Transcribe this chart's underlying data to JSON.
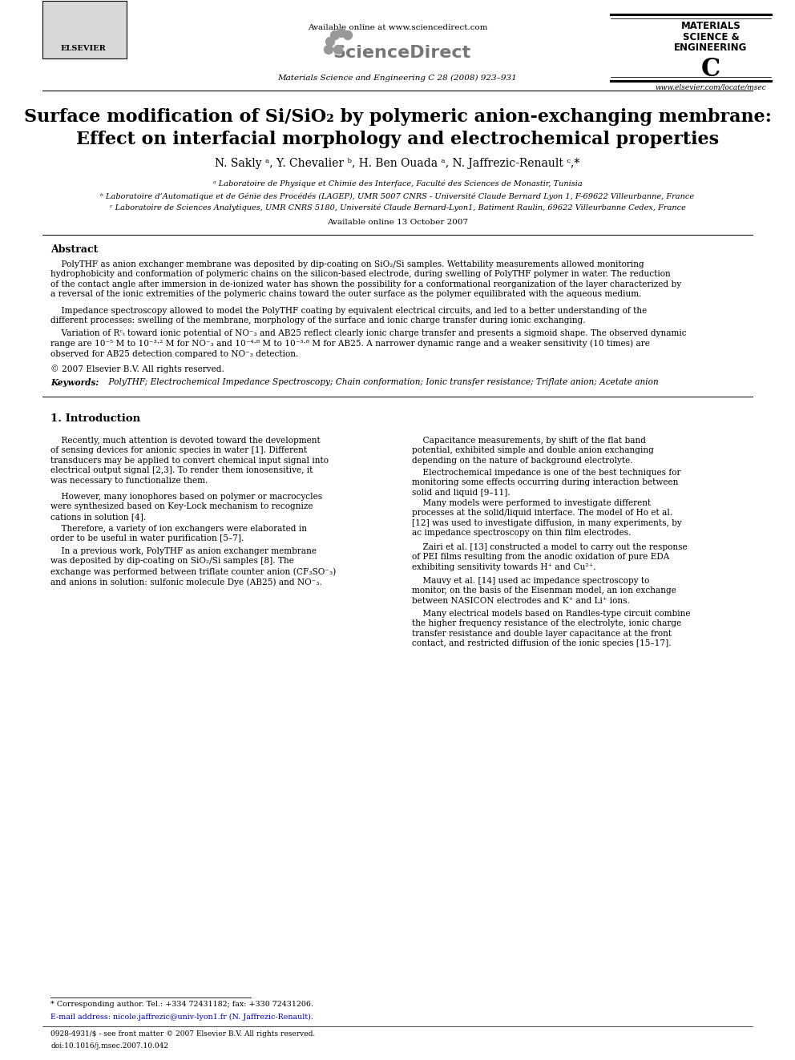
{
  "page_width": 9.92,
  "page_height": 13.23,
  "bg_color": "#ffffff",
  "header_available_online": "Available online at www.sciencedirect.com",
  "header_sciencedirect": "ScienceDirect",
  "header_journal_line": "Materials Science and Engineering C 28 (2008) 923–931",
  "header_mse_line1": "MATERIALS",
  "header_mse_line2": "SCIENCE &",
  "header_mse_line3": "ENGINEERING",
  "header_mse_line4": "C",
  "header_website": "www.elsevier.com/locate/msec",
  "header_elsevier": "ELSEVIER",
  "title_line1": "Surface modification of Si/SiO₂ by polymeric anion-exchanging membrane:",
  "title_line2": "Effect on interfacial morphology and electrochemical properties",
  "authors": "N. Sakly ᵃ, Y. Chevalier ᵇ, H. Ben Ouada ᵃ, N. Jaffrezic-Renault ᶜ,*",
  "affil_a": "ᵃ Laboratoire de Physique et Chimie des Interface, Faculté des Sciences de Monastir, Tunisia",
  "affil_b": "ᵇ Laboratoire d’Automatique et de Génie des Procédés (LAGEP), UMR 5007 CNRS - Université Claude Bernard Lyon 1, F-69622 Villeurbanne, France",
  "affil_c": "ᶜ Laboratoire de Sciences Analytiques, UMR CNRS 5180, Université Claude Bernard-Lyon1, Batiment Raulin, 69622 Villeurbanne Cedex, France",
  "available_online_date": "Available online 13 October 2007",
  "abstract_title": "Abstract",
  "abstract_p1": "    PolyTHF as anion exchanger membrane was deposited by dip-coating on SiO₂/Si samples. Wettability measurements allowed monitoring\nhydrophobicity and conformation of polymeric chains on the silicon-based electrode, during swelling of PolyTHF polymer in water. The reduction\nof the contact angle after immersion in de-ionized water has shown the possibility for a conformational reorganization of the layer characterized by\na reversal of the ionic extremities of the polymeric chains toward the outer surface as the polymer equilibrated with the aqueous medium.",
  "abstract_p2": "    Impedance spectroscopy allowed to model the PolyTHF coating by equivalent electrical circuits, and led to a better understanding of the\ndifferent processes: swelling of the membrane, morphology of the surface and ionic charge transfer during ionic exchanging.",
  "abstract_p3": "    Variation of Rᶜₜ toward ionic potential of NO⁻₃ and AB25 reflect clearly ionic charge transfer and presents a sigmoid shape. The observed dynamic\nrange are 10⁻⁵ M to 10⁻³·² M for NO⁻₃ and 10⁻⁴·⁸ M to 10⁻³·⁸ M for AB25. A narrower dynamic range and a weaker sensitivity (10 times) are\nobserved for AB25 detection compared to NO⁻₃ detection.",
  "abstract_copyright": "© 2007 Elsevier B.V. All rights reserved.",
  "keywords_label": "Keywords:",
  "keywords_text": " PolyTHF; Electrochemical Impedance Spectroscopy; Chain conformation; Ionic transfer resistance; Triflate anion; Acetate anion",
  "section1_title": "1. Introduction",
  "intro_col1_p1": "    Recently, much attention is devoted toward the development\nof sensing devices for anionic species in water [1]. Different\ntransducers may be applied to convert chemical input signal into\nelectrical output signal [2,3]. To render them ionosensitive, it\nwas necessary to functionalize them.",
  "intro_col1_p2": "    However, many ionophores based on polymer or macrocycles\nwere synthesized based on Key-Lock mechanism to recognize\ncations in solution [4].",
  "intro_col1_p3": "    Therefore, a variety of ion exchangers were elaborated in\norder to be useful in water purification [5–7].",
  "intro_col1_p4": "    In a previous work, PolyTHF as anion exchanger membrane\nwas deposited by dip-coating on SiO₂/Si samples [8]. The\nexchange was performed between triflate counter anion (CF₃SO⁻₃)\nand anions in solution: sulfonic molecule Dye (AB25) and NO⁻₃.",
  "intro_col2_p1": "    Capacitance measurements, by shift of the flat band\npotential, exhibited simple and double anion exchanging\ndepending on the nature of background electrolyte.",
  "intro_col2_p2": "    Electrochemical impedance is one of the best techniques for\nmonitoring some effects occurring during interaction between\nsolid and liquid [9–11].",
  "intro_col2_p3": "    Many models were performed to investigate different\nprocesses at the solid/liquid interface. The model of Ho et al.\n[12] was used to investigate diffusion, in many experiments, by\nac impedance spectroscopy on thin film electrodes.",
  "intro_col2_p4": "    Zairi et al. [13] constructed a model to carry out the response\nof PEI films resulting from the anodic oxidation of pure EDA\nexhibiting sensitivity towards H⁺ and Cu²⁺.",
  "intro_col2_p5": "    Mauvy et al. [14] used ac impedance spectroscopy to\nmonitor, on the basis of the Eisenman model, an ion exchange\nbetween NASICON electrodes and K⁺ and Li⁺ ions.",
  "intro_col2_p6": "    Many electrical models based on Randles-type circuit combine\nthe higher frequency resistance of the electrolyte, ionic charge\ntransfer resistance and double layer capacitance at the front\ncontact, and restricted diffusion of the ionic species [15–17].",
  "footnote_star": "* Corresponding author. Tel.: +334 72431182; fax: +330 72431206.",
  "footnote_email": "E-mail address: nicole.jaffrezic@univ-lyon1.fr (N. Jaffrezic-Renault).",
  "footer_issn": "0928-4931/$ - see front matter © 2007 Elsevier B.V. All rights reserved.",
  "footer_doi": "doi:10.1016/j.msec.2007.10.042"
}
